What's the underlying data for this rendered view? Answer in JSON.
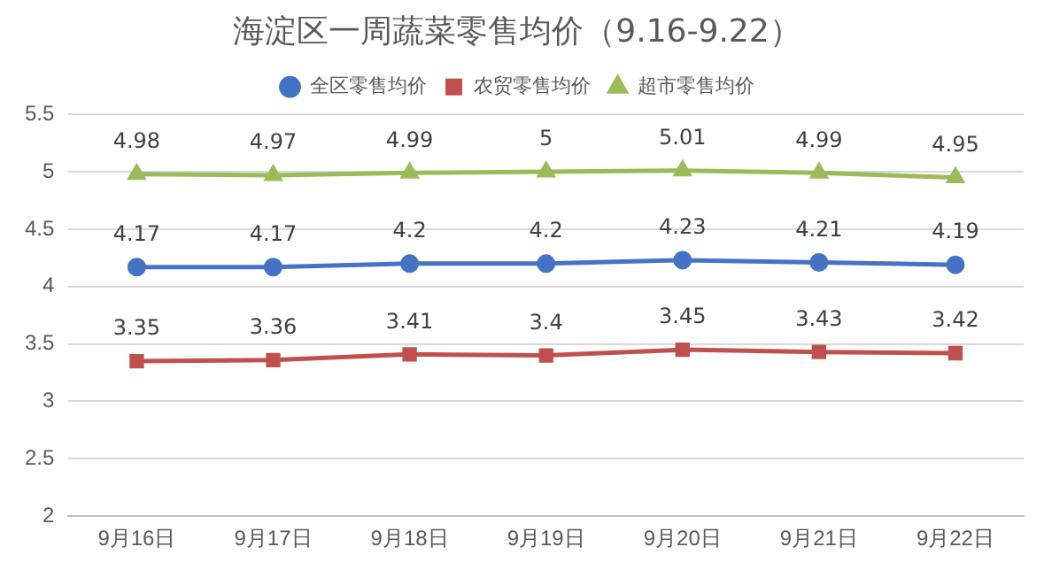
{
  "chart_data": {
    "type": "line",
    "title": "海淀区一周蔬菜零售均价（9.16-9.22）",
    "categories": [
      "9月16日",
      "9月17日",
      "9月18日",
      "9月19日",
      "9月20日",
      "9月21日",
      "9月22日"
    ],
    "series": [
      {
        "name": "全区零售均价",
        "color": "#4472c4",
        "marker": "circle",
        "values": [
          4.17,
          4.17,
          4.2,
          4.2,
          4.23,
          4.21,
          4.19
        ]
      },
      {
        "name": "农贸零售均价",
        "color": "#c0504d",
        "marker": "square",
        "values": [
          3.35,
          3.36,
          3.41,
          3.4,
          3.45,
          3.43,
          3.42
        ]
      },
      {
        "name": "超市零售均价",
        "color": "#9bbb59",
        "marker": "triangle",
        "values": [
          4.98,
          4.97,
          4.99,
          5,
          5.01,
          4.99,
          4.95
        ]
      }
    ],
    "ylim": [
      2,
      5.5
    ],
    "yticks": [
      2,
      2.5,
      3,
      3.5,
      4,
      4.5,
      5,
      5.5
    ],
    "grid": "y",
    "legend": "top",
    "data_labels": true,
    "line_style": "solid"
  }
}
